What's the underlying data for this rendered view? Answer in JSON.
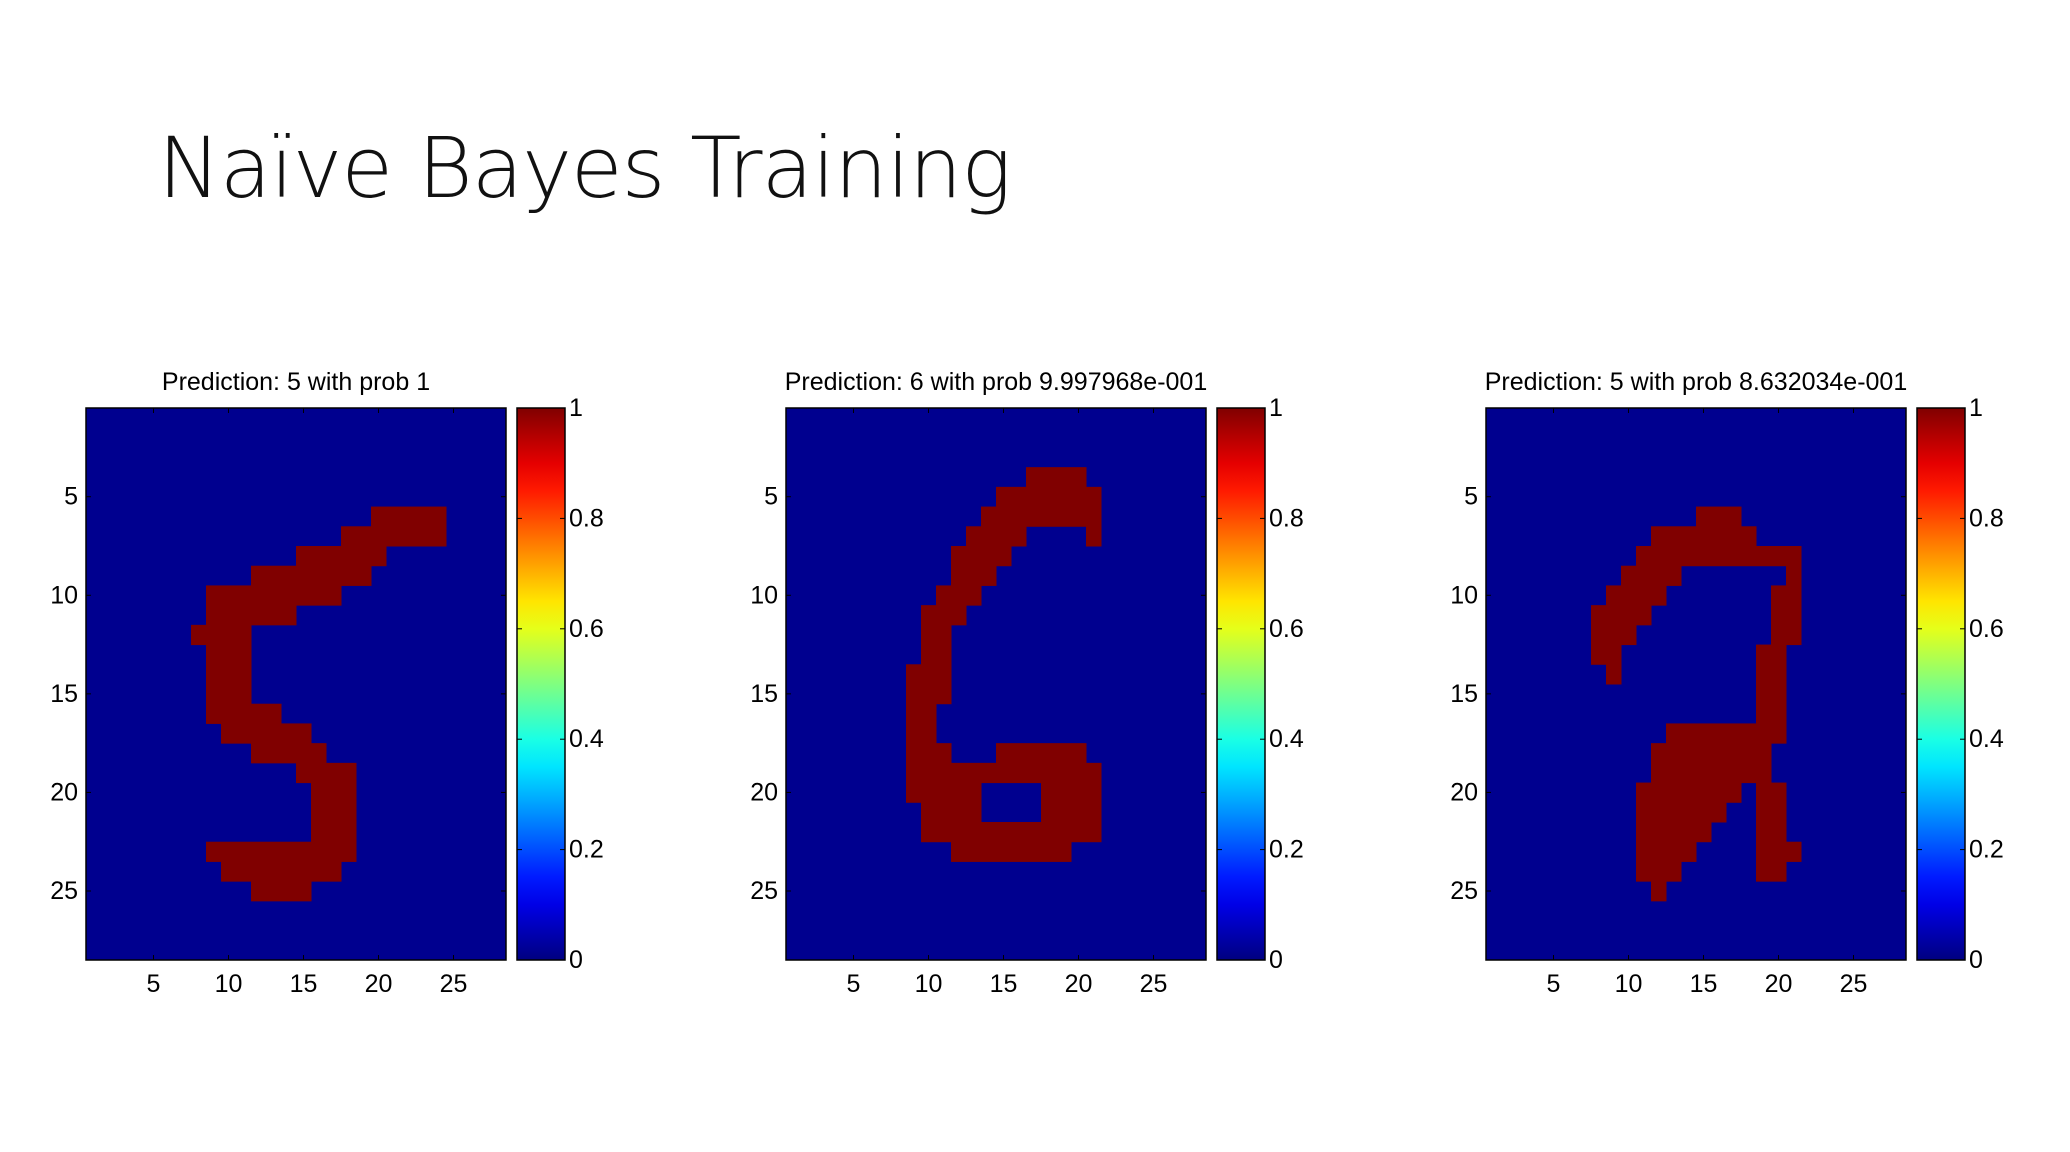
{
  "slide": {
    "title": "Naïve Bayes Training"
  },
  "colors": {
    "background": "#00008f",
    "stroke": "#800000"
  },
  "chart_data": [
    {
      "type": "heatmap",
      "title": "Prediction: 5 with prob 1",
      "grid_size": 28,
      "xlim": [
        0.5,
        28.5
      ],
      "ylim": [
        0.5,
        28.5
      ],
      "x_ticks": [
        5,
        10,
        15,
        20,
        25
      ],
      "y_ticks": [
        5,
        10,
        15,
        20,
        25
      ],
      "colorbar": {
        "colormap": "jet",
        "range": [
          0,
          1
        ],
        "ticks": [
          "0",
          "0.2",
          "0.4",
          "0.6",
          "0.8",
          "1"
        ]
      },
      "on_pixels_rows": [
        [
          6,
          20,
          24
        ],
        [
          7,
          18,
          24
        ],
        [
          8,
          15,
          20
        ],
        [
          9,
          12,
          19
        ],
        [
          10,
          9,
          17
        ],
        [
          11,
          9,
          14
        ],
        [
          12,
          8,
          11
        ],
        [
          13,
          9,
          11
        ],
        [
          14,
          9,
          11
        ],
        [
          15,
          9,
          11
        ],
        [
          16,
          9,
          13
        ],
        [
          17,
          10,
          15
        ],
        [
          18,
          12,
          16
        ],
        [
          19,
          15,
          18
        ],
        [
          20,
          16,
          18
        ],
        [
          21,
          16,
          18
        ],
        [
          22,
          16,
          18
        ],
        [
          23,
          9,
          18
        ],
        [
          24,
          10,
          17
        ],
        [
          25,
          12,
          15
        ]
      ]
    },
    {
      "type": "heatmap",
      "title": "Prediction: 6 with prob 9.997968e-001",
      "grid_size": 28,
      "xlim": [
        0.5,
        28.5
      ],
      "ylim": [
        0.5,
        28.5
      ],
      "x_ticks": [
        5,
        10,
        15,
        20,
        25
      ],
      "y_ticks": [
        5,
        10,
        15,
        20,
        25
      ],
      "colorbar": {
        "colormap": "jet",
        "range": [
          0,
          1
        ],
        "ticks": [
          "0",
          "0.2",
          "0.4",
          "0.6",
          "0.8",
          "1"
        ]
      },
      "on_pixels_rows": [
        [
          4,
          17,
          20
        ],
        [
          5,
          15,
          21
        ],
        [
          6,
          14,
          21
        ],
        [
          7,
          13,
          16
        ],
        [
          7,
          21,
          21
        ],
        [
          8,
          12,
          15
        ],
        [
          9,
          12,
          14
        ],
        [
          10,
          11,
          13
        ],
        [
          11,
          10,
          12
        ],
        [
          12,
          10,
          11
        ],
        [
          13,
          10,
          11
        ],
        [
          14,
          9,
          11
        ],
        [
          15,
          9,
          11
        ],
        [
          16,
          9,
          10
        ],
        [
          17,
          9,
          10
        ],
        [
          18,
          9,
          11
        ],
        [
          18,
          15,
          20
        ],
        [
          19,
          9,
          21
        ],
        [
          20,
          9,
          13
        ],
        [
          20,
          18,
          21
        ],
        [
          21,
          10,
          13
        ],
        [
          21,
          18,
          21
        ],
        [
          22,
          10,
          21
        ],
        [
          23,
          12,
          19
        ]
      ]
    },
    {
      "type": "heatmap",
      "title": "Prediction: 5 with prob 8.632034e-001",
      "grid_size": 28,
      "xlim": [
        0.5,
        28.5
      ],
      "ylim": [
        0.5,
        28.5
      ],
      "x_ticks": [
        5,
        10,
        15,
        20,
        25
      ],
      "y_ticks": [
        5,
        10,
        15,
        20,
        25
      ],
      "colorbar": {
        "colormap": "jet",
        "range": [
          0,
          1
        ],
        "ticks": [
          "0",
          "0.2",
          "0.4",
          "0.6",
          "0.8",
          "1"
        ]
      },
      "on_pixels_rows": [
        [
          6,
          15,
          17
        ],
        [
          7,
          12,
          18
        ],
        [
          8,
          11,
          21
        ],
        [
          9,
          10,
          13
        ],
        [
          9,
          21,
          21
        ],
        [
          10,
          9,
          12
        ],
        [
          10,
          20,
          21
        ],
        [
          11,
          8,
          11
        ],
        [
          11,
          20,
          21
        ],
        [
          12,
          8,
          10
        ],
        [
          12,
          20,
          21
        ],
        [
          13,
          8,
          9
        ],
        [
          13,
          19,
          20
        ],
        [
          14,
          9,
          9
        ],
        [
          14,
          19,
          20
        ],
        [
          15,
          19,
          20
        ],
        [
          16,
          19,
          20
        ],
        [
          17,
          13,
          20
        ],
        [
          18,
          12,
          19
        ],
        [
          19,
          12,
          19
        ],
        [
          20,
          11,
          17
        ],
        [
          20,
          19,
          20
        ],
        [
          21,
          11,
          16
        ],
        [
          21,
          19,
          20
        ],
        [
          22,
          11,
          15
        ],
        [
          22,
          19,
          20
        ],
        [
          23,
          11,
          14
        ],
        [
          23,
          19,
          21
        ],
        [
          24,
          11,
          13
        ],
        [
          24,
          19,
          20
        ],
        [
          25,
          12,
          12
        ]
      ]
    }
  ]
}
